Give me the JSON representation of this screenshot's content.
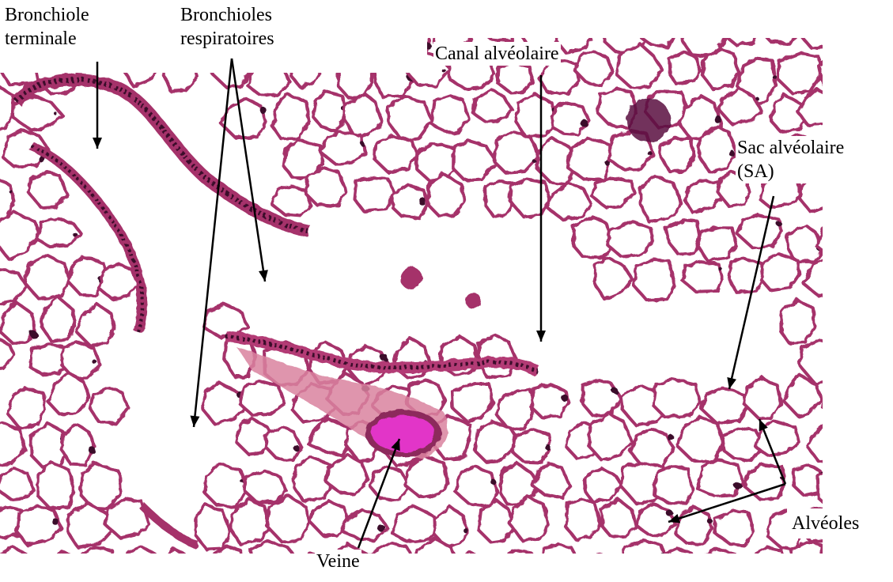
{
  "labels": {
    "bronchiole_terminale": [
      "Bronchiole",
      "terminale"
    ],
    "bronchioles_respiratoires": [
      "Bronchioles",
      "respiratoires"
    ],
    "canal_alveolaire": "Canal alvéolaire",
    "sac_alveolaire": [
      "Sac alvéolaire",
      "(SA)"
    ],
    "alveoles": "Alvéoles",
    "veine": "Veine"
  },
  "colors": {
    "tissue": "#a5306a",
    "tissue_dark": "#5a1240",
    "nuclei": "#3a0b2c",
    "blood": "#e235c8",
    "stroma": "#d9829f",
    "background": "#ffffff"
  }
}
